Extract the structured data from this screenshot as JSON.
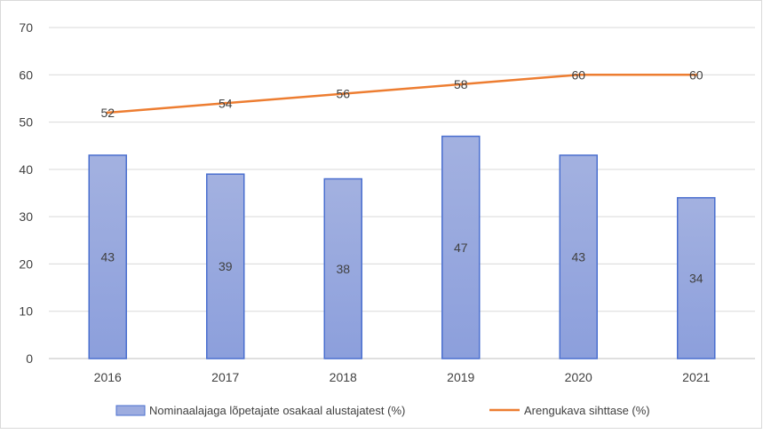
{
  "chart_data": {
    "type": "bar",
    "categories": [
      "2016",
      "2017",
      "2018",
      "2019",
      "2020",
      "2021"
    ],
    "series": [
      {
        "name": "Nominaalajaga lõpetajate osakaal alustajatest (%)",
        "type": "bar",
        "values": [
          43,
          39,
          38,
          47,
          43,
          34
        ],
        "color": "#9dacdf"
      },
      {
        "name": "Arengukava sihttase (%)",
        "type": "line",
        "values": [
          52,
          54,
          56,
          58,
          60,
          60
        ],
        "color": "#ed7d31"
      }
    ],
    "ylim": [
      0,
      70
    ],
    "yticks": [
      0,
      10,
      20,
      30,
      40,
      50,
      60,
      70
    ],
    "grid": true,
    "legend_position": "bottom"
  }
}
